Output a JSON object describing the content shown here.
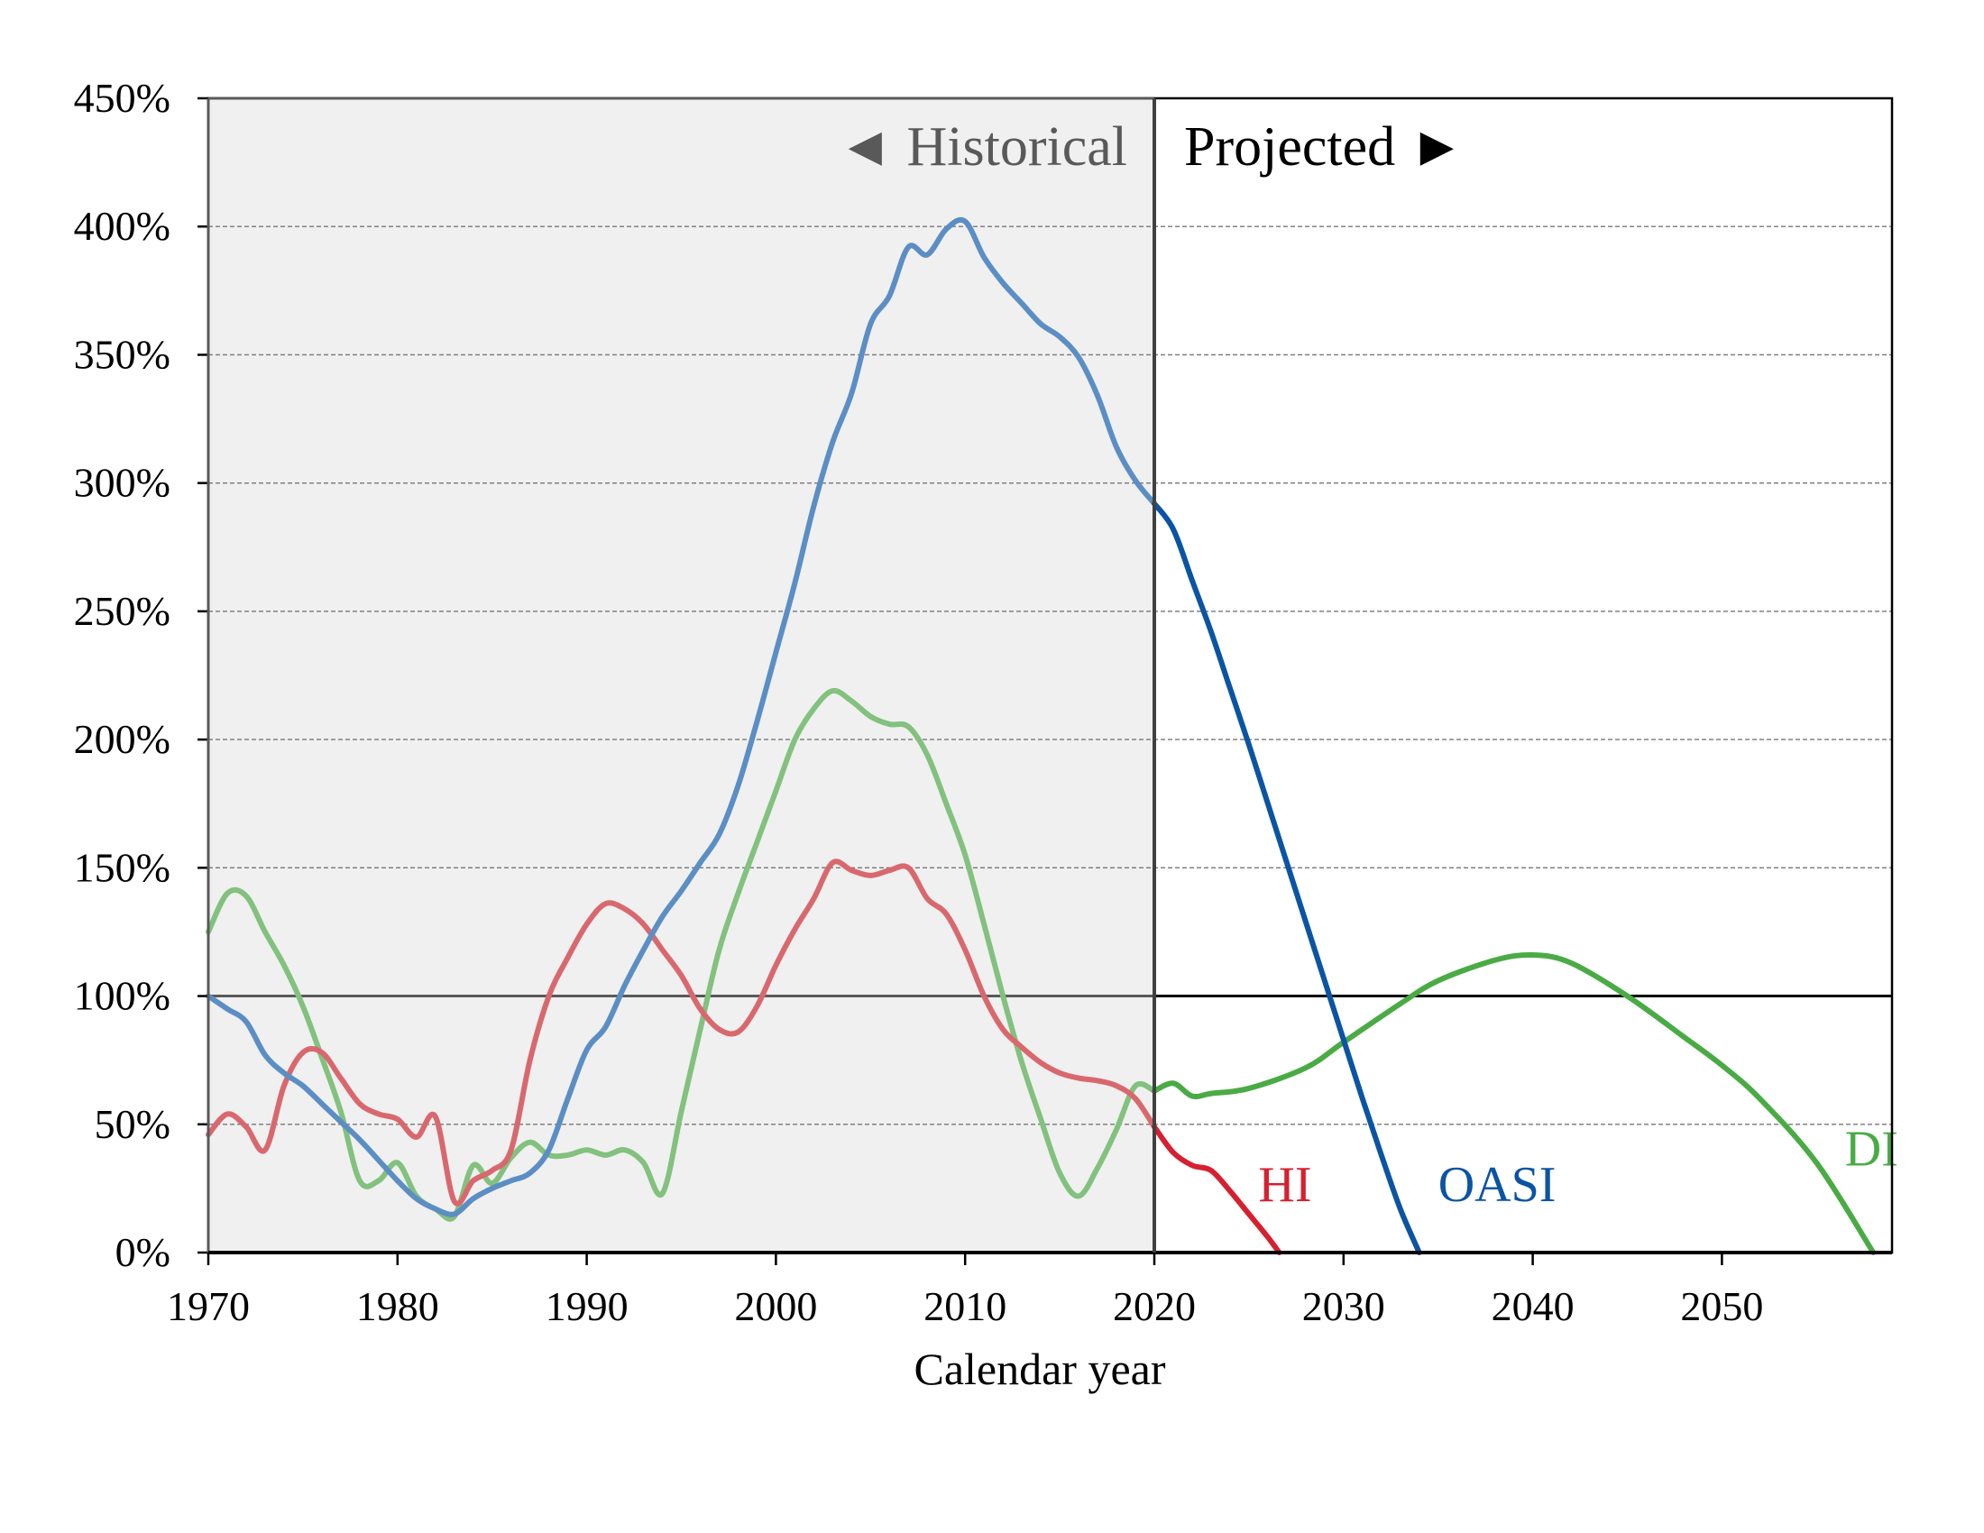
{
  "chart_data": {
    "type": "line",
    "title": "",
    "xlabel": "Calendar year",
    "ylabel": "",
    "xlim": [
      1970,
      2059
    ],
    "ylim": [
      0,
      450
    ],
    "x_ticks": [
      1970,
      1980,
      1990,
      2000,
      2010,
      2020,
      2030,
      2040,
      2050
    ],
    "y_ticks": [
      0,
      50,
      100,
      150,
      200,
      250,
      300,
      350,
      400,
      450
    ],
    "y_tick_labels": [
      "0%",
      "50%",
      "100%",
      "150%",
      "200%",
      "250%",
      "300%",
      "350%",
      "400%",
      "450%"
    ],
    "grid": "horizontal dashed",
    "reference_line": 100,
    "period_split_year": 2020,
    "annotations": {
      "historical": "◄ Historical",
      "projected": "Projected ►"
    },
    "colors": {
      "historical_background": "#f0f0f0",
      "OASI_historical": "#5b8ec4",
      "OASI_projected": "#0b54a4",
      "HI_historical": "#d9686e",
      "HI_projected": "#d62030",
      "DI_historical": "#82c17e",
      "DI_projected": "#4aab45"
    },
    "series": [
      {
        "name": "OASI",
        "label_year": 2035,
        "label_value": 20,
        "historical": {
          "x": [
            1970,
            1971,
            1972,
            1973,
            1974,
            1975,
            1976,
            1977,
            1978,
            1979,
            1980,
            1981,
            1982,
            1983,
            1984,
            1985,
            1986,
            1987,
            1988,
            1989,
            1990,
            1991,
            1992,
            1993,
            1994,
            1995,
            1996,
            1997,
            1998,
            1999,
            2000,
            2001,
            2002,
            2003,
            2004,
            2005,
            2006,
            2007,
            2008,
            2009,
            2010,
            2011,
            2012,
            2013,
            2014,
            2015,
            2016,
            2017,
            2018,
            2019,
            2020
          ],
          "y": [
            100,
            95,
            90,
            77,
            70,
            65,
            58,
            51,
            44,
            36,
            28,
            21,
            17,
            15,
            21,
            25,
            28,
            31,
            40,
            60,
            79,
            88,
            104,
            118,
            131,
            141,
            152,
            163,
            182,
            207,
            234,
            261,
            291,
            316,
            335,
            362,
            373,
            392,
            389,
            399,
            402,
            388,
            378,
            370,
            362,
            357,
            349,
            334,
            314,
            301,
            292
          ]
        },
        "projected": {
          "x": [
            2020,
            2021,
            2022,
            2023,
            2024,
            2025,
            2026,
            2027,
            2028,
            2029,
            2030,
            2031,
            2032,
            2033,
            2034
          ],
          "y": [
            292,
            282,
            262,
            242,
            220,
            198,
            175,
            152,
            129,
            106,
            83,
            60,
            38,
            17,
            0
          ]
        }
      },
      {
        "name": "HI",
        "label_year": 2025.5,
        "label_value": 20,
        "historical": {
          "x": [
            1970,
            1971,
            1972,
            1973,
            1974,
            1975,
            1976,
            1977,
            1978,
            1979,
            1980,
            1981,
            1982,
            1983,
            1984,
            1985,
            1986,
            1987,
            1988,
            1989,
            1990,
            1991,
            1992,
            1993,
            1994,
            1995,
            1996,
            1997,
            1998,
            1999,
            2000,
            2001,
            2002,
            2003,
            2004,
            2005,
            2006,
            2007,
            2008,
            2009,
            2010,
            2011,
            2012,
            2013,
            2014,
            2015,
            2016,
            2017,
            2018,
            2019,
            2020
          ],
          "y": [
            46,
            54,
            49,
            40,
            65,
            78,
            78,
            68,
            58,
            54,
            52,
            45,
            53,
            20,
            28,
            32,
            40,
            75,
            100,
            115,
            128,
            136,
            134,
            128,
            118,
            108,
            95,
            87,
            86,
            96,
            112,
            126,
            138,
            152,
            149,
            147,
            149,
            150,
            138,
            132,
            118,
            100,
            87,
            80,
            74,
            70,
            68,
            67,
            65,
            60,
            49
          ]
        },
        "projected": {
          "x": [
            2020,
            2021,
            2022,
            2023,
            2024,
            2025,
            2026,
            2026.6
          ],
          "y": [
            49,
            39,
            34,
            32,
            24,
            15,
            6,
            0
          ]
        }
      },
      {
        "name": "DI",
        "label_year": 2056.5,
        "label_value": 34,
        "historical": {
          "x": [
            1970,
            1971,
            1972,
            1973,
            1974,
            1975,
            1976,
            1977,
            1978,
            1979,
            1980,
            1981,
            1982,
            1983,
            1984,
            1985,
            1986,
            1987,
            1988,
            1989,
            1990,
            1991,
            1992,
            1993,
            1994,
            1995,
            1996,
            1997,
            1998,
            1999,
            2000,
            2001,
            2002,
            2003,
            2004,
            2005,
            2006,
            2007,
            2008,
            2009,
            2010,
            2011,
            2012,
            2013,
            2014,
            2015,
            2016,
            2017,
            2018,
            2019,
            2020
          ],
          "y": [
            125,
            140,
            139,
            125,
            112,
            96,
            76,
            55,
            28,
            28,
            35,
            22,
            17,
            14,
            34,
            27,
            37,
            43,
            38,
            38,
            40,
            38,
            40,
            35,
            23,
            55,
            87,
            118,
            140,
            160,
            180,
            200,
            212,
            219,
            215,
            209,
            206,
            205,
            194,
            175,
            155,
            128,
            100,
            74,
            52,
            31,
            22,
            33,
            48,
            65,
            63
          ]
        },
        "projected": {
          "x": [
            2020,
            2021,
            2022,
            2023,
            2025,
            2028,
            2030,
            2033,
            2035,
            2038,
            2040,
            2042,
            2045,
            2048,
            2050,
            2052,
            2055,
            2058
          ],
          "y": [
            63,
            66,
            61,
            62,
            64,
            72,
            82,
            97,
            106,
            114,
            116,
            113,
            100,
            84,
            73,
            60,
            35,
            0
          ]
        }
      }
    ]
  }
}
